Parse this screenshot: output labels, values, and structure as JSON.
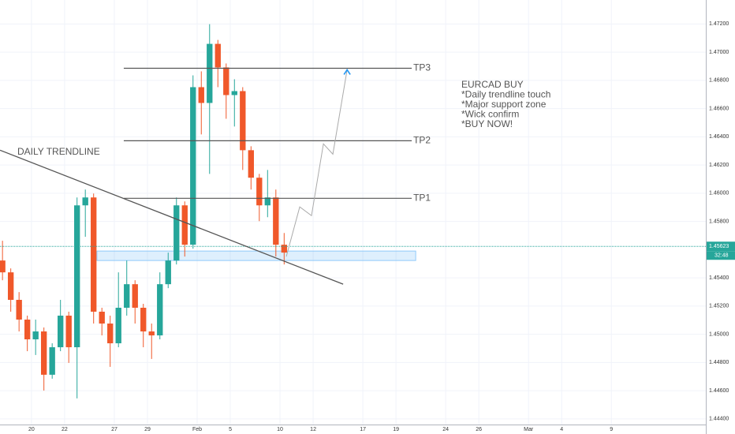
{
  "chart_data": {
    "type": "candlestick",
    "x": [
      -1.75,
      -1.25,
      -0.75,
      -0.25,
      0.25,
      0.75,
      1.25,
      1.75,
      2.25,
      2.75,
      3.25,
      3.75,
      4.25,
      4.75,
      5.25,
      5.75,
      6.25,
      6.75,
      7.25,
      7.75,
      8.25,
      8.75,
      9.25,
      9.75,
      10.25,
      10.75,
      11.25,
      11.75,
      12.25,
      12.75,
      13.25,
      13.75,
      14.25,
      14.75,
      15.25
    ],
    "open": [
      1.45523,
      1.45439,
      1.45244,
      1.45104,
      1.44964,
      1.4502,
      1.44713,
      1.44908,
      1.45132,
      1.44908,
      1.45914,
      1.4597,
      1.4516,
      1.45076,
      1.44936,
      1.45188,
      1.45355,
      1.45188,
      1.4502,
      1.44992,
      1.45355,
      1.45523,
      1.45914,
      1.45635,
      1.46752,
      1.4664,
      1.47059,
      1.46892,
      1.46696,
      1.46724,
      1.46305,
      1.4611,
      1.45914,
      1.4597,
      1.45635
    ],
    "high": [
      1.45663,
      1.45467,
      1.45299,
      1.45132,
      1.45104,
      1.45048,
      1.44936,
      1.45244,
      1.4516,
      1.4597,
      1.46026,
      1.45998,
      1.45188,
      1.45132,
      1.45439,
      1.45523,
      1.45383,
      1.45216,
      1.45076,
      1.45439,
      1.45579,
      1.4597,
      1.45942,
      1.46836,
      1.46864,
      1.47199,
      1.47087,
      1.4692,
      1.46808,
      1.46752,
      1.46333,
      1.46137,
      1.46165,
      1.46026,
      1.45718
    ],
    "low": [
      1.45383,
      1.4516,
      1.4502,
      1.4488,
      1.44853,
      1.44601,
      1.44685,
      1.4488,
      1.44797,
      1.44545,
      1.45691,
      1.45076,
      1.44992,
      1.44769,
      1.44908,
      1.45132,
      1.45076,
      1.44908,
      1.44825,
      1.44964,
      1.45327,
      1.45495,
      1.45551,
      1.45607,
      1.46417,
      1.46137,
      1.46752,
      1.46528,
      1.46473,
      1.46165,
      1.46026,
      1.45802,
      1.4583,
      1.45551,
      1.45495
    ],
    "close": [
      1.45439,
      1.45244,
      1.45104,
      1.44964,
      1.4502,
      1.44713,
      1.44908,
      1.45132,
      1.44908,
      1.45914,
      1.4597,
      1.4516,
      1.45076,
      1.44936,
      1.45188,
      1.45355,
      1.45188,
      1.4502,
      1.44992,
      1.45355,
      1.45523,
      1.45914,
      1.45635,
      1.46752,
      1.4664,
      1.47059,
      1.46892,
      1.46696,
      1.46724,
      1.46305,
      1.4611,
      1.45914,
      1.4597,
      1.45635,
      1.45579
    ],
    "up_color": "#26a69a",
    "down_color": "#f0582a",
    "xlim": [
      -1.9,
      40.7
    ],
    "xticks": [
      {
        "value": 0,
        "label": "20"
      },
      {
        "value": 2,
        "label": "22"
      },
      {
        "value": 5,
        "label": "27"
      },
      {
        "value": 7,
        "label": "29"
      },
      {
        "value": 10,
        "label": "Feb"
      },
      {
        "value": 12,
        "label": "5"
      },
      {
        "value": 15,
        "label": "10"
      },
      {
        "value": 17,
        "label": "12"
      },
      {
        "value": 20,
        "label": "17"
      },
      {
        "value": 22,
        "label": "19"
      },
      {
        "value": 25,
        "label": "24"
      },
      {
        "value": 27,
        "label": "26"
      },
      {
        "value": 30,
        "label": "Mar"
      },
      {
        "value": 32,
        "label": "4"
      },
      {
        "value": 35,
        "label": "9"
      }
    ],
    "ylim": [
      1.4436,
      1.4737
    ],
    "yticks": [
      {
        "value": 1.444,
        "label": "1.44400"
      },
      {
        "value": 1.446,
        "label": "1.44600"
      },
      {
        "value": 1.448,
        "label": "1.44800"
      },
      {
        "value": 1.45,
        "label": "1.45000"
      },
      {
        "value": 1.452,
        "label": "1.45200"
      },
      {
        "value": 1.454,
        "label": "1.45400"
      },
      {
        "value": 1.458,
        "label": "1.45800"
      },
      {
        "value": 1.46,
        "label": "1.46000"
      },
      {
        "value": 1.462,
        "label": "1.46200"
      },
      {
        "value": 1.464,
        "label": "1.46400"
      },
      {
        "value": 1.466,
        "label": "1.46600"
      },
      {
        "value": 1.468,
        "label": "1.46800"
      },
      {
        "value": 1.47,
        "label": "1.47000"
      },
      {
        "value": 1.472,
        "label": "1.47200"
      }
    ],
    "grid": true,
    "last_price": {
      "value": 1.45623,
      "countdown": "32:48",
      "color": "#26a69a"
    },
    "levels": [
      {
        "name": "TP1",
        "value": 1.45964,
        "x": [
          5.57,
          22.95
        ]
      },
      {
        "name": "TP2",
        "value": 1.46372,
        "x": [
          5.57,
          22.95
        ]
      },
      {
        "name": "TP3",
        "value": 1.46886,
        "x": [
          5.57,
          22.95
        ]
      }
    ],
    "trendline": {
      "label": "DAILY TRENDLINE",
      "x": [
        -1.9,
        18.81
      ],
      "y": [
        1.46305,
        1.45355
      ]
    },
    "zone": {
      "x": [
        3.95,
        23.19
      ],
      "y": [
        1.45523,
        1.4559
      ]
    },
    "projection": {
      "x": [
        15.38,
        16.19,
        16.9,
        17.62,
        18.19,
        19.05
      ],
      "y": [
        1.45551,
        1.45903,
        1.45841,
        1.4635,
        1.46277,
        1.46875
      ]
    },
    "note": [
      "EURCAD BUY",
      "*Daily trendline touch",
      "*Major support zone",
      "*Wick confirm",
      "*BUY NOW!"
    ]
  }
}
